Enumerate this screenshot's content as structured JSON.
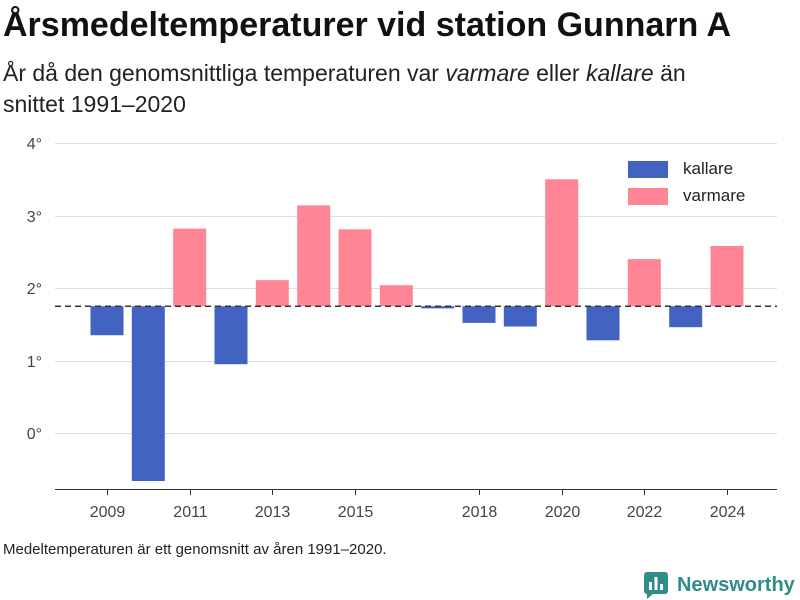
{
  "chart_data": {
    "type": "bar",
    "title": "Årsmedeltemperaturer vid station Gunnarn A",
    "subtitle": {
      "part1": "År då den genomsnittliga temperaturen var ",
      "warm": "varmare",
      "part2": " eller ",
      "cold": "kallare",
      "part3": " än",
      "line2": "snittet 1991–2020"
    },
    "footnote": "Medeltemperaturen är ett genomsnitt av åren 1991–2020.",
    "categories": [
      2009,
      2010,
      2011,
      2012,
      2013,
      2014,
      2015,
      2016,
      2017,
      2018,
      2019,
      2020,
      2021,
      2022,
      2023,
      2024
    ],
    "values": [
      1.35,
      -0.66,
      2.82,
      0.95,
      2.11,
      3.14,
      2.81,
      2.04,
      1.72,
      1.52,
      1.47,
      3.5,
      1.28,
      2.4,
      1.46,
      2.58
    ],
    "baseline": 1.75,
    "baseline_style": "dashed",
    "legend": [
      {
        "name": "kallare",
        "color": "#4263c2"
      },
      {
        "name": "varmare",
        "color": "#ff8494"
      }
    ],
    "legend_position": "top-right",
    "xticks": [
      2009,
      2011,
      2013,
      2015,
      2018,
      2020,
      2022,
      2024
    ],
    "yticks": [
      0,
      1,
      2,
      3,
      4
    ],
    "ytick_labels": [
      "0°",
      "1°",
      "2°",
      "3°",
      "4°"
    ],
    "ylim": [
      -0.77,
      4
    ],
    "grid": true
  },
  "brand": {
    "name": "Newsworthy",
    "icon": "newsworthy-logo-icon",
    "color": "#2f8c89"
  }
}
